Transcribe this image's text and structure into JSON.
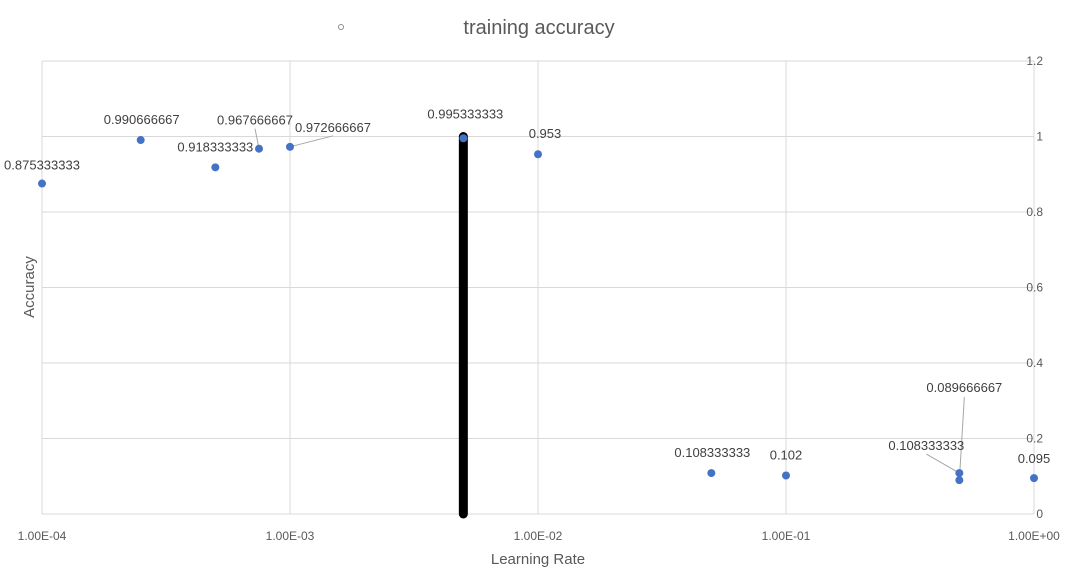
{
  "chart_data": {
    "type": "scatter",
    "title": "training accuracy",
    "xlabel": "Learning Rate",
    "ylabel": "Accuracy",
    "x_scale": "log",
    "xlim": [
      0.0001,
      1
    ],
    "ylim": [
      0,
      1.2
    ],
    "x_tick_labels": [
      "1.00E-04",
      "1.00E-03",
      "1.00E-02",
      "1.00E-01",
      "1.00E+00"
    ],
    "y_tick_labels": [
      "0",
      "0.2",
      "0.4",
      "0.6",
      "0.8",
      "1",
      "1.2"
    ],
    "y_axis_side": "right",
    "grid": true,
    "legend": "top",
    "marker_color": "#4472c4",
    "points": [
      {
        "x": 0.0001,
        "y": 0.875333333,
        "label": "0.875333333"
      },
      {
        "x": 0.00025,
        "y": 0.990666667,
        "label": "0.990666667"
      },
      {
        "x": 0.0005,
        "y": 0.918333333,
        "label": "0.918333333"
      },
      {
        "x": 0.00075,
        "y": 0.967666667,
        "label": "0.967666667"
      },
      {
        "x": 0.001,
        "y": 0.972666667,
        "label": "0.972666667"
      },
      {
        "x": 0.005,
        "y": 0.995333333,
        "label": "0.995333333"
      },
      {
        "x": 0.01,
        "y": 0.953,
        "label": "0.953"
      },
      {
        "x": 0.05,
        "y": 0.108333333,
        "label": "0.108333333"
      },
      {
        "x": 0.1,
        "y": 0.102,
        "label": "0.102"
      },
      {
        "x": 0.5,
        "y": 0.108333333,
        "label": "0.108333333"
      },
      {
        "x": 0.5,
        "y": 0.089666667,
        "label": "0.089666667"
      },
      {
        "x": 1,
        "y": 0.095,
        "label": "0.095"
      }
    ],
    "annotation": {
      "type": "vertical-line",
      "x": 0.005,
      "y_from": 0,
      "y_to": 1,
      "color": "#000000"
    }
  }
}
